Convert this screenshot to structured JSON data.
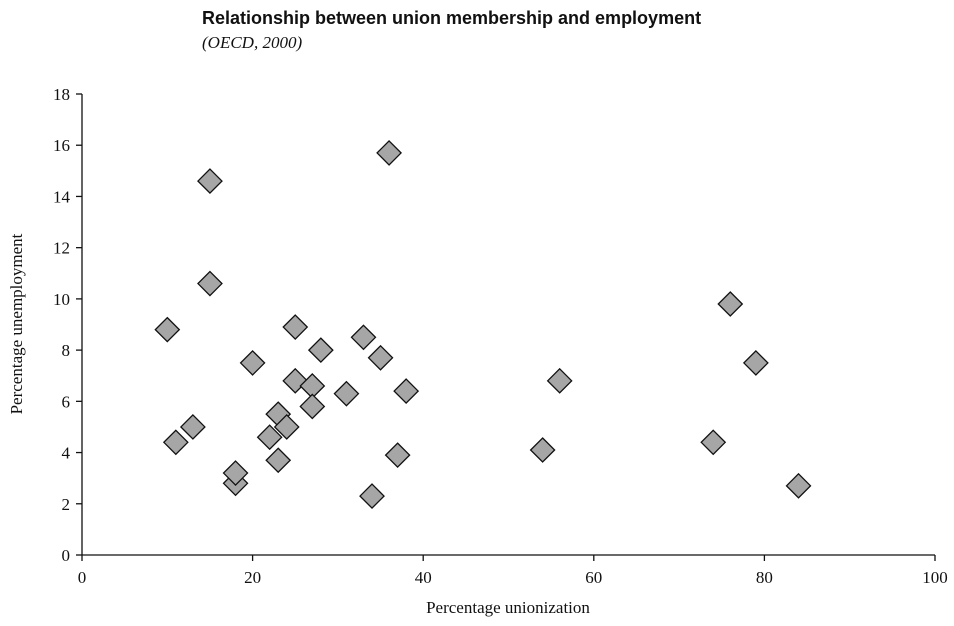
{
  "chart_data": {
    "type": "scatter",
    "title": "Relationship between union membership and employment",
    "subtitle": "(OECD, 2000)",
    "xlabel": "Percentage unionization",
    "ylabel": "Percentage unemployment",
    "xlim": [
      0,
      100
    ],
    "ylim": [
      0,
      18
    ],
    "xticks": [
      0,
      20,
      40,
      60,
      80,
      100
    ],
    "yticks": [
      0,
      2,
      4,
      6,
      8,
      10,
      12,
      14,
      16,
      18
    ],
    "grid": false,
    "marker": "diamond",
    "marker_color": "#a6a6a6",
    "points": [
      {
        "x": 10,
        "y": 8.8
      },
      {
        "x": 11,
        "y": 4.4
      },
      {
        "x": 13,
        "y": 5.0
      },
      {
        "x": 15,
        "y": 14.6
      },
      {
        "x": 15,
        "y": 10.6
      },
      {
        "x": 18,
        "y": 2.8
      },
      {
        "x": 18,
        "y": 3.2
      },
      {
        "x": 20,
        "y": 7.5
      },
      {
        "x": 22,
        "y": 4.6
      },
      {
        "x": 23,
        "y": 5.5
      },
      {
        "x": 23,
        "y": 3.7
      },
      {
        "x": 24,
        "y": 5.0
      },
      {
        "x": 25,
        "y": 6.8
      },
      {
        "x": 25,
        "y": 8.9
      },
      {
        "x": 27,
        "y": 6.6
      },
      {
        "x": 27,
        "y": 5.8
      },
      {
        "x": 28,
        "y": 8.0
      },
      {
        "x": 31,
        "y": 6.3
      },
      {
        "x": 33,
        "y": 8.5
      },
      {
        "x": 34,
        "y": 2.3
      },
      {
        "x": 35,
        "y": 7.7
      },
      {
        "x": 36,
        "y": 15.7
      },
      {
        "x": 37,
        "y": 3.9
      },
      {
        "x": 38,
        "y": 6.4
      },
      {
        "x": 54,
        "y": 4.1
      },
      {
        "x": 56,
        "y": 6.8
      },
      {
        "x": 74,
        "y": 4.4
      },
      {
        "x": 76,
        "y": 9.8
      },
      {
        "x": 79,
        "y": 7.5
      },
      {
        "x": 84,
        "y": 2.7
      }
    ]
  }
}
